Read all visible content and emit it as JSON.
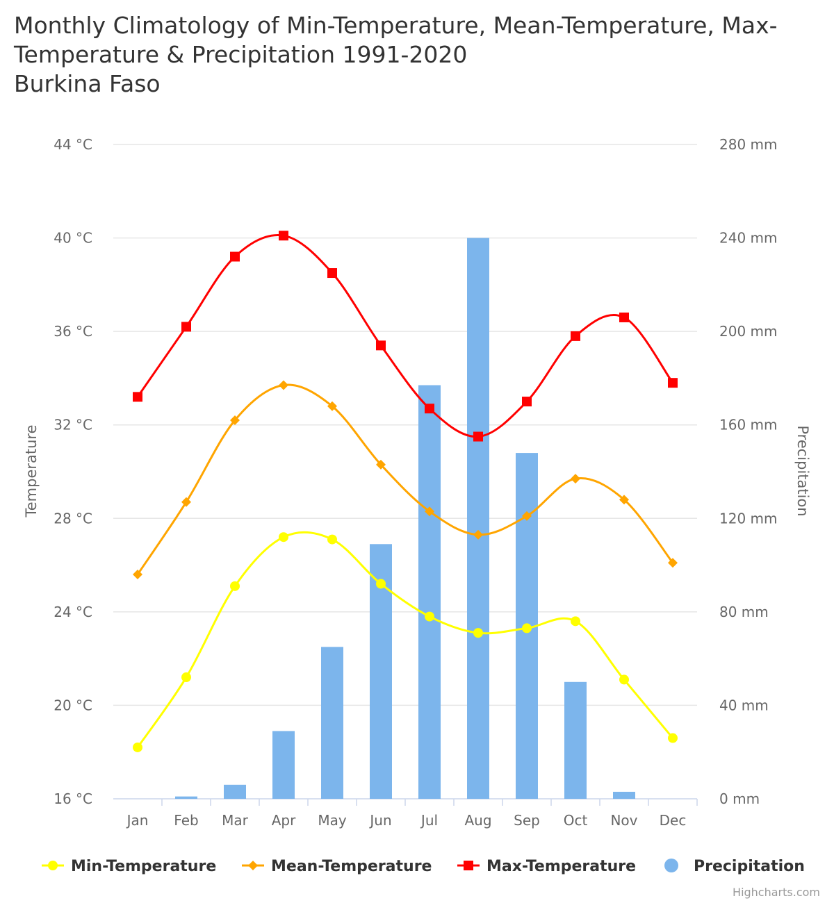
{
  "title": {
    "line1": "Monthly Climatology of Min-Temperature, Mean-Temperature, Max-",
    "line2": "Temperature & Precipitation 1991-2020",
    "line3": "Burkina Faso"
  },
  "credit": "Highcharts.com",
  "colors": {
    "min": "#ffff00",
    "mean": "#ffa500",
    "max": "#ff0000",
    "precip": "#7cb5ec"
  },
  "chart_data": {
    "type": "line",
    "categories": [
      "Jan",
      "Feb",
      "Mar",
      "Apr",
      "May",
      "Jun",
      "Jul",
      "Aug",
      "Sep",
      "Oct",
      "Nov",
      "Dec"
    ],
    "y_left": {
      "title": "Temperature",
      "min": 16,
      "max": 44,
      "ticks": [
        16,
        20,
        24,
        28,
        32,
        36,
        40,
        44
      ],
      "tick_labels": [
        "16 °C",
        "20 °C",
        "24 °C",
        "28 °C",
        "32 °C",
        "36 °C",
        "40 °C",
        "44 °C"
      ]
    },
    "y_right": {
      "title": "Precipitation",
      "min": 0,
      "max": 280,
      "ticks": [
        0,
        40,
        80,
        120,
        160,
        200,
        240,
        280
      ],
      "tick_labels": [
        "0 mm",
        "40 mm",
        "80 mm",
        "120 mm",
        "160 mm",
        "200 mm",
        "240 mm",
        "280 mm"
      ]
    },
    "grid": true,
    "legend_position": "bottom",
    "series": [
      {
        "name": "Min-Temperature",
        "type": "spline",
        "axis": "left",
        "marker": "circle",
        "color": "#ffff00",
        "values": [
          18.2,
          21.2,
          25.1,
          27.2,
          27.1,
          25.2,
          23.8,
          23.1,
          23.3,
          23.6,
          21.1,
          18.6
        ]
      },
      {
        "name": "Mean-Temperature",
        "type": "spline",
        "axis": "left",
        "marker": "diamond",
        "color": "#ffa500",
        "values": [
          25.6,
          28.7,
          32.2,
          33.7,
          32.8,
          30.3,
          28.3,
          27.3,
          28.1,
          29.7,
          28.8,
          26.1
        ]
      },
      {
        "name": "Max-Temperature",
        "type": "spline",
        "axis": "left",
        "marker": "square",
        "color": "#ff0000",
        "values": [
          33.2,
          36.2,
          39.2,
          40.1,
          38.5,
          35.4,
          32.7,
          31.5,
          33.0,
          35.8,
          36.6,
          33.8
        ]
      },
      {
        "name": "Precipitation",
        "type": "column",
        "axis": "right",
        "marker": "circle",
        "color": "#7cb5ec",
        "values": [
          0,
          1,
          6,
          29,
          65,
          109,
          177,
          240,
          148,
          50,
          3,
          0
        ]
      }
    ]
  }
}
